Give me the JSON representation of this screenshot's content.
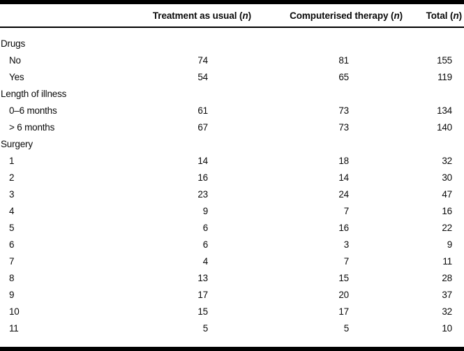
{
  "table": {
    "columns": [
      {
        "pre": "Treatment as usual (",
        "n": "n",
        "post": ")"
      },
      {
        "pre": "Computerised therapy (",
        "n": "n",
        "post": ")"
      },
      {
        "pre": "Total (",
        "n": "n",
        "post": ")"
      }
    ],
    "rows": [
      {
        "label": "Drugs",
        "type": "section",
        "values": [
          "",
          "",
          ""
        ]
      },
      {
        "label": "No",
        "type": "sub",
        "values": [
          "74",
          "81",
          "155"
        ]
      },
      {
        "label": "Yes",
        "type": "sub",
        "values": [
          "54",
          "65",
          "119"
        ]
      },
      {
        "label": "Length of illness",
        "type": "section",
        "values": [
          "",
          "",
          ""
        ]
      },
      {
        "label": "0–6 months",
        "type": "sub",
        "values": [
          "61",
          "73",
          "134"
        ]
      },
      {
        "label": "> 6 months",
        "type": "sub",
        "values": [
          "67",
          "73",
          "140"
        ]
      },
      {
        "label": "Surgery",
        "type": "section",
        "values": [
          "",
          "",
          ""
        ]
      },
      {
        "label": "1",
        "type": "sub",
        "values": [
          "14",
          "18",
          "32"
        ]
      },
      {
        "label": "2",
        "type": "sub",
        "values": [
          "16",
          "14",
          "30"
        ]
      },
      {
        "label": "3",
        "type": "sub",
        "values": [
          "23",
          "24",
          "47"
        ]
      },
      {
        "label": "4",
        "type": "sub",
        "values": [
          "9",
          "7",
          "16"
        ]
      },
      {
        "label": "5",
        "type": "sub",
        "values": [
          "6",
          "16",
          "22"
        ]
      },
      {
        "label": "6",
        "type": "sub",
        "values": [
          "6",
          "3",
          "9"
        ]
      },
      {
        "label": "7",
        "type": "sub",
        "values": [
          "4",
          "7",
          "11"
        ]
      },
      {
        "label": "8",
        "type": "sub",
        "values": [
          "13",
          "15",
          "28"
        ]
      },
      {
        "label": "9",
        "type": "sub",
        "values": [
          "17",
          "20",
          "37"
        ]
      },
      {
        "label": "10",
        "type": "sub",
        "values": [
          "15",
          "17",
          "32"
        ]
      },
      {
        "label": "11",
        "type": "sub",
        "values": [
          "5",
          "5",
          "10"
        ]
      }
    ],
    "colors": {
      "rule": "#000000",
      "text": "#0a0a0a",
      "background": "#ffffff"
    }
  }
}
